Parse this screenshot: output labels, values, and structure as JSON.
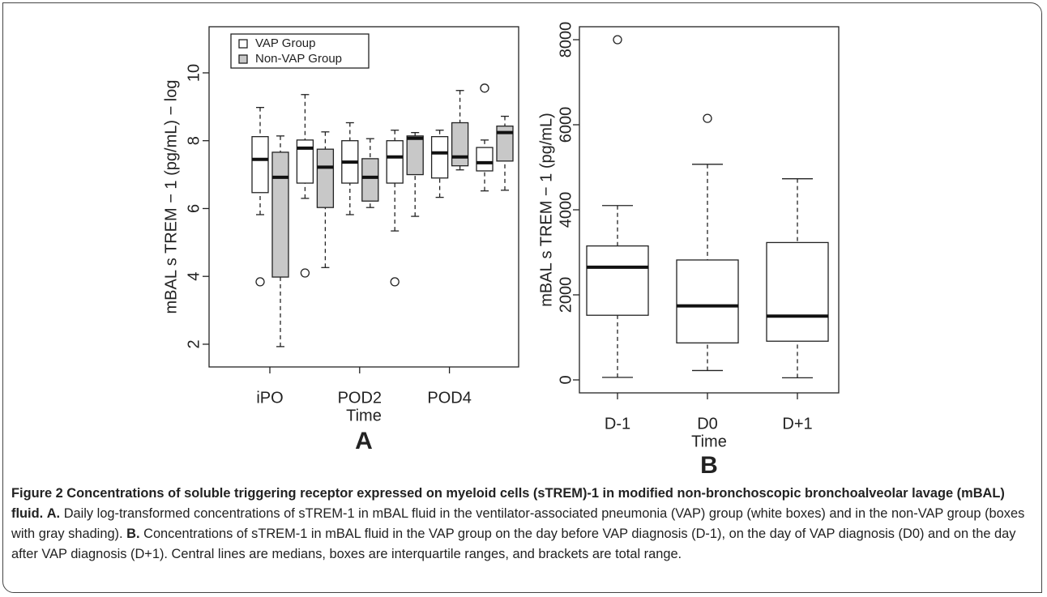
{
  "chart_data": [
    {
      "type": "box",
      "panel_label": "A",
      "xlabel": "Time",
      "ylabel": "mBAL s TREM − 1 (pg/mL) − log",
      "categories": [
        "iPO",
        null,
        "POD2",
        null,
        "POD4",
        null
      ],
      "ylim": [
        1.33,
        11.36
      ],
      "yticks": [
        2,
        4,
        6,
        8,
        10
      ],
      "legend": "top-left",
      "series": [
        {
          "name": "VAP Group",
          "color": "#ffffff",
          "low": [
            5.82,
            6.3,
            5.82,
            5.34,
            6.33,
            6.52
          ],
          "q1": [
            6.47,
            6.75,
            6.75,
            6.75,
            6.9,
            7.11
          ],
          "median": [
            7.45,
            7.78,
            7.37,
            7.52,
            7.64,
            7.35
          ],
          "q3": [
            8.12,
            8.02,
            8.0,
            8.0,
            8.12,
            7.8
          ],
          "high": [
            8.98,
            9.36,
            8.53,
            8.31,
            8.31,
            8.02
          ],
          "outliers": [
            [
              3.84
            ],
            [
              4.1
            ],
            [],
            [
              3.84
            ],
            [],
            [
              9.55
            ]
          ]
        },
        {
          "name": "Non-VAP Group",
          "color": "#c8c8c8",
          "low": [
            1.93,
            4.26,
            6.03,
            5.77,
            7.14,
            6.54
          ],
          "q1": [
            3.98,
            6.03,
            6.22,
            7.0,
            7.26,
            7.4
          ],
          "median": [
            6.92,
            7.22,
            6.92,
            8.07,
            7.52,
            8.24
          ],
          "q3": [
            7.66,
            7.75,
            7.47,
            8.14,
            8.53,
            8.43
          ],
          "high": [
            8.14,
            8.26,
            8.06,
            8.24,
            9.48,
            8.72
          ],
          "outliers": [
            [],
            [],
            [],
            [],
            [],
            []
          ]
        }
      ]
    },
    {
      "type": "box",
      "panel_label": "B",
      "xlabel": "Time",
      "ylabel": "mBAL s TREM − 1 (pg/mL)",
      "categories": [
        "D-1",
        "D0",
        "D+1"
      ],
      "ylim": [
        -305,
        8305
      ],
      "yticks": [
        0,
        2000,
        4000,
        6000,
        8000
      ],
      "series": [
        {
          "color": "#ffffff",
          "low": [
            60,
            220,
            50
          ],
          "q1": [
            1520,
            870,
            910
          ],
          "median": [
            2650,
            1740,
            1500
          ],
          "q3": [
            3150,
            2820,
            3230
          ],
          "high": [
            4100,
            5070,
            4730
          ],
          "outliers": [
            [
              8000
            ],
            [
              6150
            ],
            []
          ]
        }
      ]
    }
  ],
  "caption": {
    "title": "Figure 2 Concentrations of soluble triggering receptor expressed on myeloid cells (sTREM)-1 in modified non-bronchoscopic bronchoalveolar lavage (mBAL) fluid.",
    "a_label": "A.",
    "a_text": "Daily log-transformed concentrations of sTREM-1 in mBAL fluid in the ventilator-associated pneumonia (VAP) group (white boxes) and in the non-VAP group (boxes with gray shading).",
    "b_label": "B.",
    "b_text": "Concentrations of sTREM-1 in mBAL fluid in the VAP group on the day before VAP diagnosis (D-1), on the day of VAP diagnosis (D0) and on the day after VAP diagnosis (D+1). Central lines are medians, boxes are interquartile ranges, and brackets are total range."
  }
}
